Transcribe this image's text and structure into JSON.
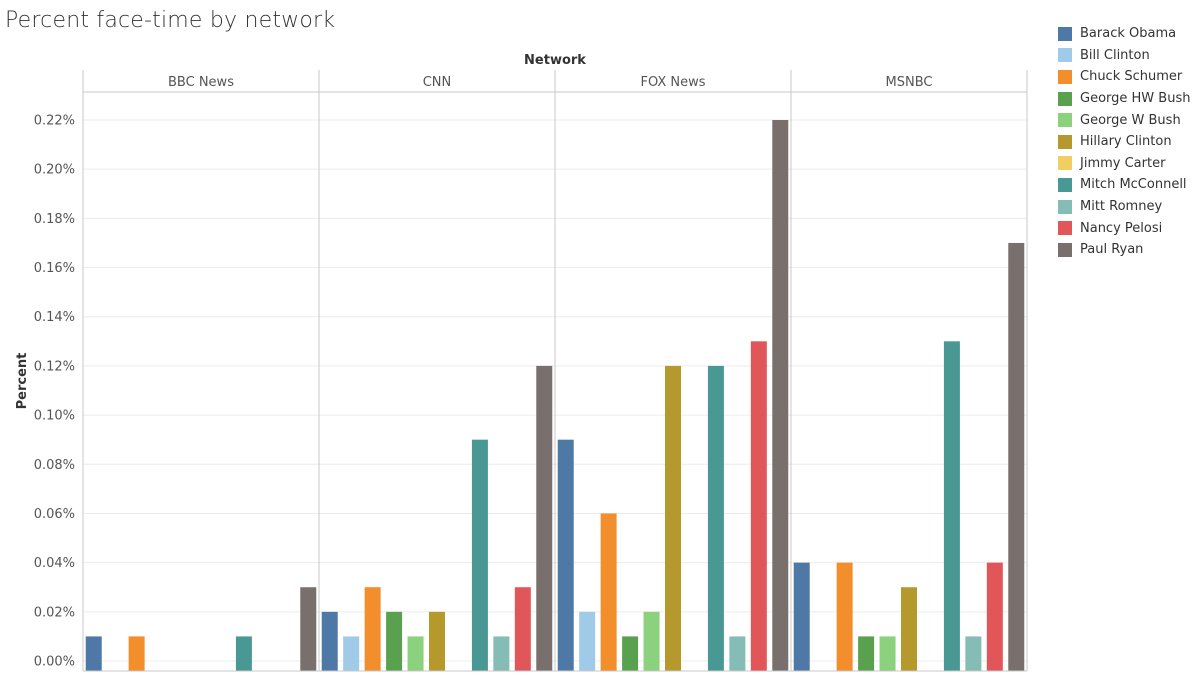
{
  "chart_data": {
    "type": "bar",
    "title": "Percent face-time by network",
    "column_header": "Network",
    "ylabel": "Percent",
    "ylim": [
      0,
      0.23
    ],
    "y_ticks": [
      0.0,
      0.02,
      0.04,
      0.06,
      0.08,
      0.1,
      0.12,
      0.14,
      0.16,
      0.18,
      0.2,
      0.22
    ],
    "y_tick_labels": [
      "0.00%",
      "0.02%",
      "0.04%",
      "0.06%",
      "0.08%",
      "0.10%",
      "0.12%",
      "0.14%",
      "0.16%",
      "0.18%",
      "0.20%",
      "0.22%"
    ],
    "grid": true,
    "legend_position": "right",
    "panels": [
      "BBC News",
      "CNN",
      "FOX News",
      "MSNBC"
    ],
    "series": [
      {
        "name": "Barack Obama",
        "color": "#4e79a7",
        "values": [
          0.01,
          0.02,
          0.09,
          0.04
        ]
      },
      {
        "name": "Bill Clinton",
        "color": "#a0cbe8",
        "values": [
          null,
          0.01,
          0.02,
          null
        ]
      },
      {
        "name": "Chuck Schumer",
        "color": "#f28e2b",
        "values": [
          0.01,
          0.03,
          0.06,
          0.04
        ]
      },
      {
        "name": "George HW Bush",
        "color": "#59a14f",
        "values": [
          null,
          0.02,
          0.01,
          0.01
        ]
      },
      {
        "name": "George W Bush",
        "color": "#8cd17d",
        "values": [
          null,
          0.01,
          0.02,
          0.01
        ]
      },
      {
        "name": "Hillary Clinton",
        "color": "#b6992d",
        "values": [
          null,
          0.02,
          0.12,
          0.03
        ]
      },
      {
        "name": "Jimmy Carter",
        "color": "#f1ce63",
        "values": [
          null,
          null,
          null,
          null
        ]
      },
      {
        "name": "Mitch McConnell",
        "color": "#499894",
        "values": [
          0.01,
          0.09,
          0.12,
          0.13
        ]
      },
      {
        "name": "Mitt Romney",
        "color": "#86bcb6",
        "values": [
          null,
          0.01,
          0.01,
          0.01
        ]
      },
      {
        "name": "Nancy Pelosi",
        "color": "#e15759",
        "values": [
          null,
          0.03,
          0.13,
          0.04
        ]
      },
      {
        "name": "Paul Ryan",
        "color": "#79706e",
        "values": [
          0.03,
          0.12,
          0.22,
          0.17
        ]
      }
    ]
  }
}
